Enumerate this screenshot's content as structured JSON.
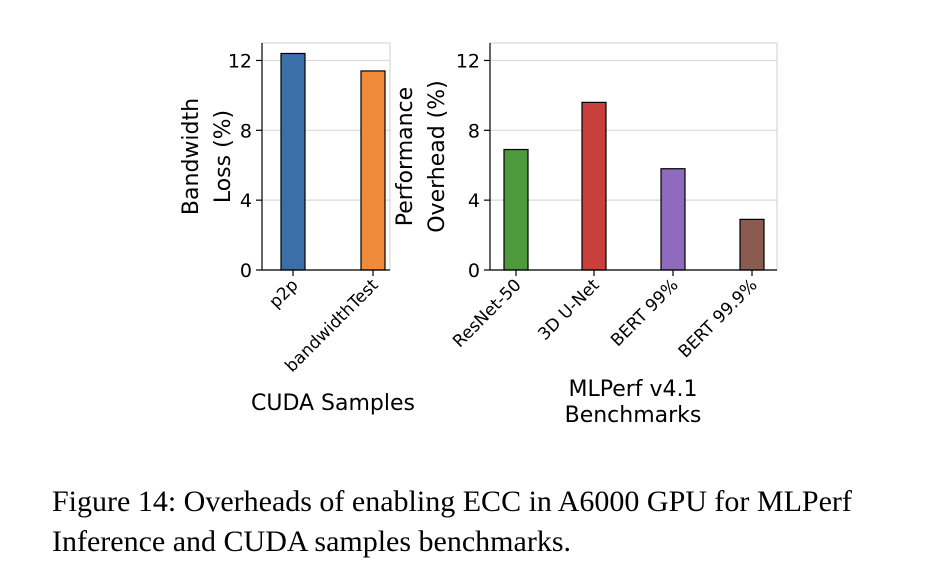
{
  "chart_data": [
    {
      "type": "bar",
      "categories": [
        "p2p",
        "bandwidthTest"
      ],
      "values": [
        12.4,
        11.4
      ],
      "colors": [
        "#3b6fa8",
        "#ef8b3a"
      ],
      "xlabel": "CUDA Samples",
      "ylabel_lines": [
        "Bandwidth",
        "Loss (%)"
      ],
      "ylim": [
        0,
        13
      ],
      "yticks": [
        0,
        4,
        8,
        12
      ],
      "grid": "horizontal"
    },
    {
      "type": "bar",
      "categories": [
        "ResNet-50",
        "3D U-Net",
        "BERT 99%",
        "BERT 99.9%"
      ],
      "values": [
        6.9,
        9.6,
        5.8,
        2.9
      ],
      "colors": [
        "#4c9a3c",
        "#c8403a",
        "#8e6bbd",
        "#8a5b50"
      ],
      "xlabel_lines": [
        "MLPerf v4.1",
        "Benchmarks"
      ],
      "ylabel_lines": [
        "Performance",
        "Overhead (%)"
      ],
      "ylim": [
        0,
        13
      ],
      "yticks": [
        0,
        4,
        8,
        12
      ],
      "grid": "horizontal"
    }
  ],
  "caption": "Figure 14: Overheads of enabling ECC in A6000 GPU for MLPerf Inference and CUDA samples benchmarks."
}
